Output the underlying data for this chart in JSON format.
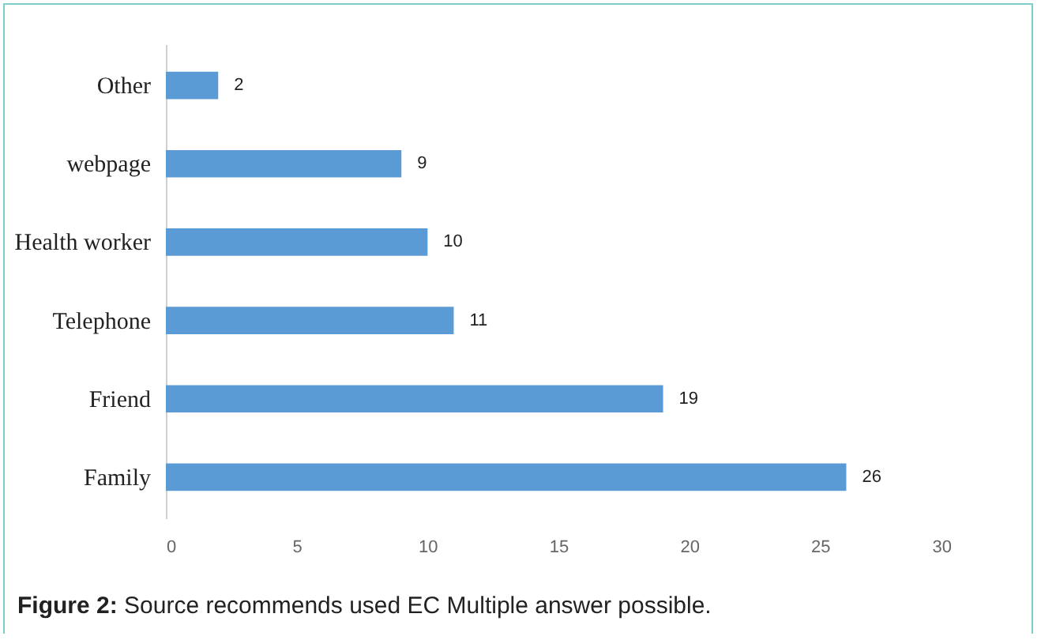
{
  "chart_data": {
    "type": "bar",
    "orientation": "horizontal",
    "categories": [
      "Other",
      "webpage",
      "Health worker",
      "Telephone",
      "Friend",
      "Family"
    ],
    "values": [
      2,
      9,
      10,
      11,
      19,
      26
    ],
    "color": "#5b9bd5",
    "xlim": [
      0,
      30
    ],
    "xticks": [
      0,
      5,
      10,
      15,
      20,
      25,
      30
    ],
    "grid": false,
    "data_labels": true,
    "annotations": [
      "Figure 2: Source recommends used EC Multiple answer possible."
    ]
  }
}
